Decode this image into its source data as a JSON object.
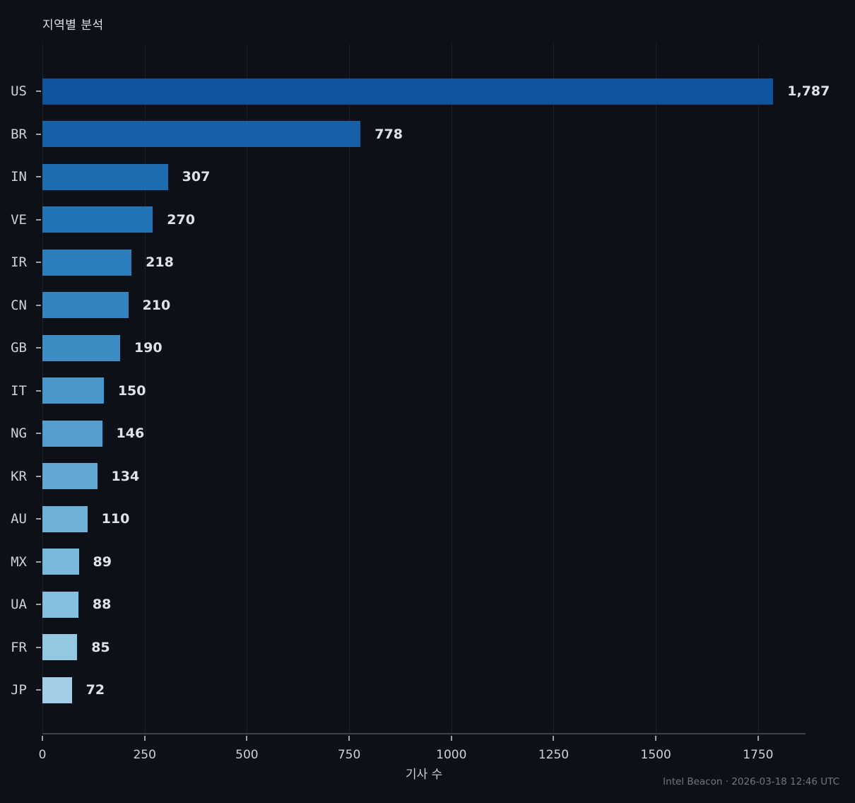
{
  "title": "지역별 분석",
  "footer": "Intel Beacon · 2026-03-18 12:46 UTC",
  "chart_data": {
    "type": "bar",
    "orientation": "horizontal",
    "title": "지역별 분석",
    "xlabel": "기사 수",
    "ylabel": "",
    "categories": [
      "US",
      "BR",
      "IN",
      "VE",
      "IR",
      "CN",
      "GB",
      "IT",
      "NG",
      "KR",
      "AU",
      "MX",
      "UA",
      "FR",
      "JP"
    ],
    "values": [
      1787,
      778,
      307,
      270,
      218,
      210,
      190,
      150,
      146,
      134,
      110,
      89,
      88,
      85,
      72
    ],
    "value_labels": [
      "1,787",
      "778",
      "307",
      "270",
      "218",
      "210",
      "190",
      "150",
      "146",
      "134",
      "110",
      "89",
      "88",
      "85",
      "72"
    ],
    "bar_colors": [
      "#0f549d",
      "#1560a7",
      "#1e6cb0",
      "#2274b5",
      "#2c7dbb",
      "#3484bf",
      "#3d8dc4",
      "#4a98c9",
      "#549fcd",
      "#61a8d2",
      "#6db1d7",
      "#7ab8db",
      "#87c0de",
      "#94c7e2",
      "#a3cde7"
    ],
    "xticks": [
      0,
      250,
      500,
      750,
      1000,
      1250,
      1500,
      1750
    ],
    "xtick_labels": [
      "0",
      "250",
      "500",
      "750",
      "1000",
      "1250",
      "1500",
      "1750"
    ],
    "xlim": [
      0,
      1866
    ],
    "grid": "vertical",
    "legend": "none",
    "background": "#0d1117"
  },
  "colors": {
    "background": "#0d1117",
    "gridline": "#1b212c",
    "axis_spine": "#3a4250",
    "tick_mark": "#9aa2ac",
    "tick_label": "#ccd2d9",
    "value_label": "#dfe3e8",
    "title": "#dde1e6",
    "footer": "#6e7681"
  }
}
